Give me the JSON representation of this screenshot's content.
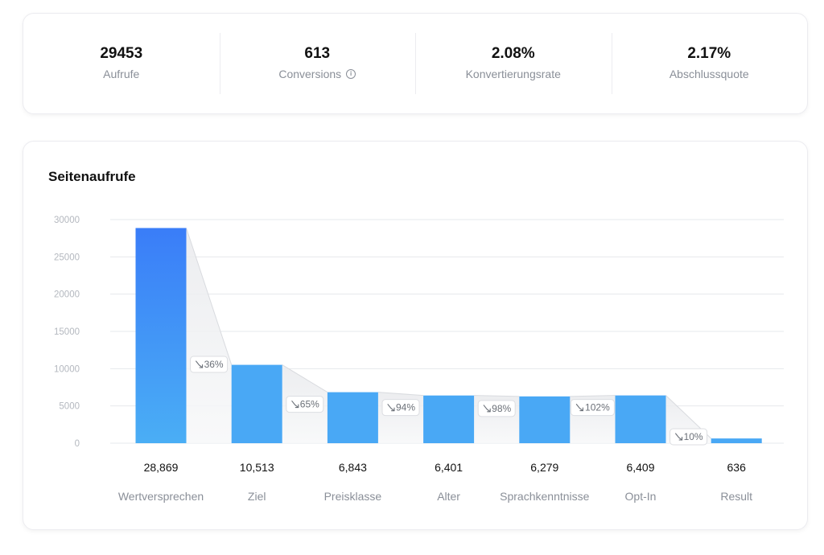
{
  "stats": [
    {
      "value": "29453",
      "label": "Aufrufe",
      "info": false
    },
    {
      "value": "613",
      "label": "Conversions",
      "info": true,
      "info_icon": "info-icon"
    },
    {
      "value": "2.08%",
      "label": "Konvertierungsrate",
      "info": false
    },
    {
      "value": "2.17%",
      "label": "Abschlussquote",
      "info": false
    }
  ],
  "chart_title": "Seitenaufrufe",
  "chart_data": {
    "type": "bar",
    "title": "Seitenaufrufe",
    "xlabel": "",
    "ylabel": "",
    "ylim": [
      0,
      30000
    ],
    "yticks": [
      "30000",
      "25000",
      "20000",
      "15000",
      "10000",
      "5000",
      "0"
    ],
    "ytick_values": [
      30000,
      25000,
      20000,
      15000,
      10000,
      5000,
      0
    ],
    "grid": true,
    "categories": [
      "Wertversprechen",
      "Ziel",
      "Preisklasse",
      "Alter",
      "Sprachkenntnisse",
      "Opt-In",
      "Result"
    ],
    "values": [
      28869,
      10513,
      6843,
      6401,
      6279,
      6409,
      636
    ],
    "value_labels": [
      "28,869",
      "10,513",
      "6,843",
      "6,401",
      "6,279",
      "6,409",
      "636"
    ],
    "dropoff_labels": [
      "36%",
      "65%",
      "94%",
      "98%",
      "102%",
      "10%"
    ],
    "dropoff_icon": "arrow-down-right-icon",
    "colors": {
      "bar_top": "#3a7df8",
      "bar_bottom": "#4aaef5",
      "bar": "#49a8f5",
      "grid": "#e6e8ec",
      "tick": "#b4b8bf",
      "label": "#8a8f98",
      "funnel": "#f0f1f3"
    }
  }
}
